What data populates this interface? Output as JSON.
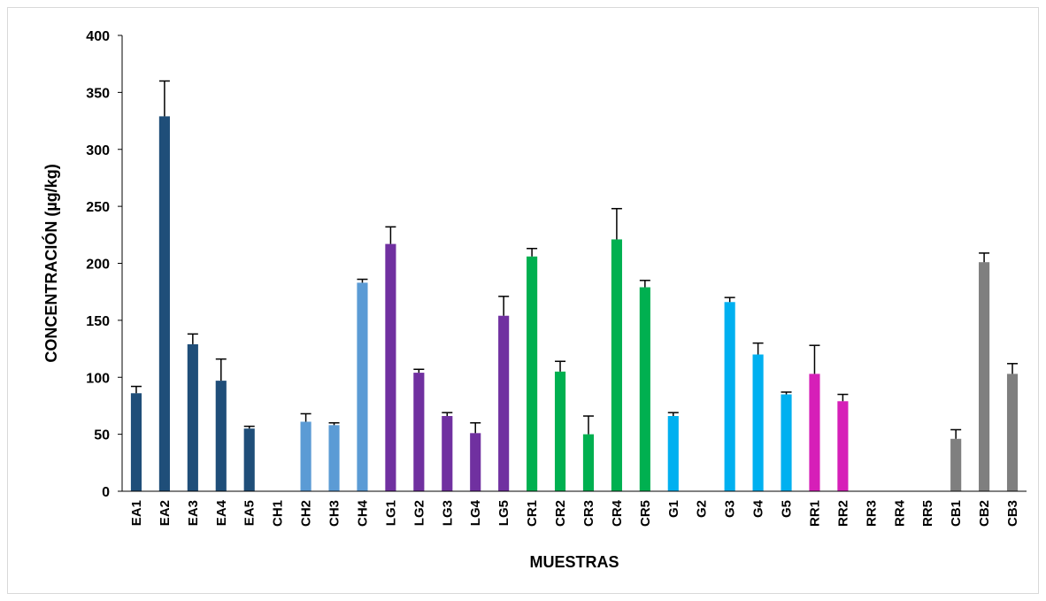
{
  "chart_data": {
    "type": "bar",
    "title": "",
    "xlabel": "MUESTRAS",
    "ylabel": "CONCENTRACIÓN (µg/kg)",
    "ylim": [
      0,
      400
    ],
    "yticks": [
      0,
      50,
      100,
      150,
      200,
      250,
      300,
      350,
      400
    ],
    "grid": false,
    "legend": "none",
    "error_bars": "positive",
    "groups": [
      {
        "prefix": "EA",
        "color": "#1f4e79"
      },
      {
        "prefix": "CH",
        "color": "#5b9bd5"
      },
      {
        "prefix": "LG",
        "color": "#7030a0"
      },
      {
        "prefix": "CR",
        "color": "#00b050"
      },
      {
        "prefix": "G",
        "color": "#00b0f0"
      },
      {
        "prefix": "RR",
        "color": "#d61fb8"
      },
      {
        "prefix": "CB",
        "color": "#7f7f7f"
      }
    ],
    "categories": [
      "EA1",
      "EA2",
      "EA3",
      "EA4",
      "EA5",
      "CH1",
      "CH2",
      "CH3",
      "CH4",
      "LG1",
      "LG2",
      "LG3",
      "LG4",
      "LG5",
      "CR1",
      "CR2",
      "CR3",
      "CR4",
      "CR5",
      "G1",
      "G2",
      "G3",
      "G4",
      "G5",
      "RR1",
      "RR2",
      "RR3",
      "RR4",
      "RR5",
      "CB1",
      "CB2",
      "CB3"
    ],
    "values": [
      86,
      329,
      129,
      97,
      55,
      0,
      61,
      58,
      183,
      217,
      104,
      66,
      51,
      154,
      206,
      105,
      50,
      221,
      179,
      66,
      0,
      166,
      120,
      85,
      103,
      79,
      0,
      0,
      0,
      46,
      201,
      103
    ],
    "errors": [
      6,
      31,
      9,
      19,
      2,
      0,
      7,
      2,
      3,
      15,
      3,
      3,
      9,
      17,
      7,
      9,
      16,
      27,
      6,
      3,
      0,
      4,
      10,
      2,
      25,
      6,
      0,
      0,
      0,
      8,
      8,
      9
    ],
    "colors": [
      "#1f4e79",
      "#1f4e79",
      "#1f4e79",
      "#1f4e79",
      "#1f4e79",
      "#5b9bd5",
      "#5b9bd5",
      "#5b9bd5",
      "#5b9bd5",
      "#7030a0",
      "#7030a0",
      "#7030a0",
      "#7030a0",
      "#7030a0",
      "#00b050",
      "#00b050",
      "#00b050",
      "#00b050",
      "#00b050",
      "#00b0f0",
      "#00b0f0",
      "#00b0f0",
      "#00b0f0",
      "#00b0f0",
      "#d61fb8",
      "#d61fb8",
      "#d61fb8",
      "#d61fb8",
      "#d61fb8",
      "#7f7f7f",
      "#7f7f7f",
      "#7f7f7f"
    ]
  }
}
